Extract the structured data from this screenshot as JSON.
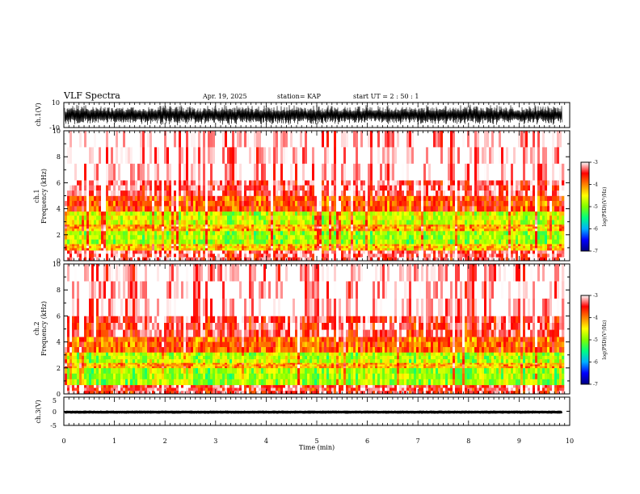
{
  "header": {
    "title": "VLF Spectra",
    "date": "Apr. 19, 2025",
    "station": "station= KAP",
    "start": "start  UT =   2 : 50 : 1"
  },
  "chart_data": [
    {
      "type": "line",
      "id": "ch1-waveform",
      "ylabel": "ch.1(V)",
      "ylim": [
        -10,
        10
      ],
      "ytick_labels": [
        "10",
        "-10"
      ],
      "xlim": [
        0,
        10
      ],
      "description": "dense noise waveform spanning roughly -8 to 8 V over 0 to 9.85 min"
    },
    {
      "type": "heatmap",
      "id": "ch1-spectrogram",
      "ylabel": "ch.1",
      "ylabel2": "Frequency  (kHz)",
      "ylim": [
        0,
        10
      ],
      "ytick_labels": [
        "0",
        "2",
        "4",
        "6",
        "8",
        "10"
      ],
      "xlim": [
        0,
        10
      ],
      "data_extent_min": 9.85,
      "zrange": [
        -7,
        -3
      ],
      "colorbar_label": "log(PSD)(V²/Hz)",
      "colorbar_ticks": [
        "-3",
        "-4",
        "-5",
        "-6",
        "-7"
      ],
      "bands": [
        {
          "f": [
            0,
            0.8
          ],
          "level": -3.3
        },
        {
          "f": [
            0.8,
            1.3
          ],
          "level": -4.3
        },
        {
          "f": [
            1.3,
            2.3
          ],
          "level": -4.9
        },
        {
          "f": [
            2.3,
            2.8
          ],
          "level": -4.2
        },
        {
          "f": [
            2.8,
            3.8
          ],
          "level": -4.7
        },
        {
          "f": [
            3.8,
            5.0
          ],
          "level": -3.8
        },
        {
          "f": [
            5.0,
            6.2
          ],
          "level": -3.3
        },
        {
          "f": [
            6.2,
            10
          ],
          "level": -3.0
        }
      ]
    },
    {
      "type": "heatmap",
      "id": "ch2-spectrogram",
      "ylabel": "ch.2",
      "ylabel2": "Frequency  (kHz)",
      "ylim": [
        0,
        10
      ],
      "ytick_labels": [
        "0",
        "2",
        "4",
        "6",
        "8",
        "10"
      ],
      "xlim": [
        0,
        10
      ],
      "data_extent_min": 9.85,
      "zrange": [
        -7,
        -3
      ],
      "colorbar_label": "log(PSD)(V²/Hz)",
      "colorbar_ticks": [
        "-3",
        "-4",
        "-5",
        "-6",
        "-7"
      ],
      "bands": [
        {
          "f": [
            0,
            0.7
          ],
          "level": -3.4
        },
        {
          "f": [
            0.7,
            2.0
          ],
          "level": -4.9
        },
        {
          "f": [
            2.0,
            2.4
          ],
          "level": -4.2
        },
        {
          "f": [
            2.4,
            3.2
          ],
          "level": -4.8
        },
        {
          "f": [
            3.2,
            4.4
          ],
          "level": -3.9
        },
        {
          "f": [
            4.4,
            6.0
          ],
          "level": -3.4
        },
        {
          "f": [
            6.0,
            10
          ],
          "level": -3.0
        }
      ]
    },
    {
      "type": "line",
      "id": "ch3-waveform",
      "ylabel": "ch.3(V)",
      "ylim": [
        -5,
        5
      ],
      "ytick_labels": [
        "5",
        "0",
        "-5"
      ],
      "xlim": [
        0,
        10
      ],
      "description": "thick band centred near -0.3 V over 0 to 9.85 min"
    }
  ],
  "xaxis": {
    "xlabel": "Time  (min)",
    "ticks": [
      "0",
      "1",
      "2",
      "3",
      "4",
      "5",
      "6",
      "7",
      "8",
      "9",
      "10"
    ]
  },
  "colors": {
    "colormap": [
      "#000080",
      "#0000ff",
      "#00b0ff",
      "#00ff80",
      "#80ff00",
      "#ffff00",
      "#ff8000",
      "#ff0000",
      "#ffffff"
    ]
  }
}
